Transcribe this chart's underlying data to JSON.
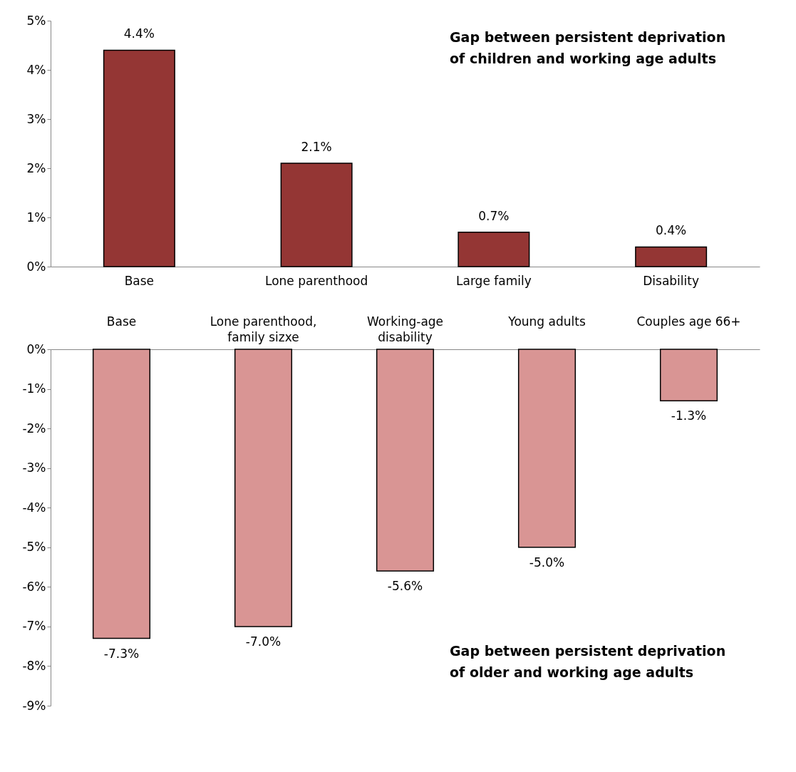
{
  "chart_data": [
    {
      "type": "bar",
      "categories": [
        "Base",
        "Lone parenthood",
        "Large family",
        "Disability"
      ],
      "values": [
        4.4,
        2.1,
        0.7,
        0.4
      ],
      "value_labels": [
        "4.4%",
        "2.1%",
        "0.7%",
        "0.4%"
      ],
      "color": "#943634",
      "ylim": [
        0,
        5
      ],
      "yticks": [
        {
          "value": 0,
          "label": "0%"
        },
        {
          "value": 1,
          "label": "1%"
        },
        {
          "value": 2,
          "label": "2%"
        },
        {
          "value": 3,
          "label": "3%"
        },
        {
          "value": 4,
          "label": "4%"
        },
        {
          "value": 5,
          "label": "5%"
        }
      ],
      "grid": false,
      "annotations": [
        "Gap between persistent deprivation of children and working age adults"
      ]
    },
    {
      "type": "bar",
      "categories": [
        "Base",
        "Lone parenthood, family sizxe",
        "Working-age disability",
        "Young adults",
        "Couples age 66+"
      ],
      "values": [
        -7.3,
        -7.0,
        -5.6,
        -5.0,
        -1.3
      ],
      "value_labels": [
        "-7.3%",
        "-7.0%",
        "-5.6%",
        "-5.0%",
        "-1.3%"
      ],
      "color": "#d99594",
      "ylim": [
        -9,
        0
      ],
      "yticks": [
        {
          "value": 0,
          "label": "0%"
        },
        {
          "value": -1,
          "label": "-1%"
        },
        {
          "value": -2,
          "label": "-2%"
        },
        {
          "value": -3,
          "label": "-3%"
        },
        {
          "value": -4,
          "label": "-4%"
        },
        {
          "value": -5,
          "label": "-5%"
        },
        {
          "value": -6,
          "label": "-6%"
        },
        {
          "value": -7,
          "label": "-7%"
        },
        {
          "value": -8,
          "label": "-8%"
        },
        {
          "value": -9,
          "label": "-9%"
        }
      ],
      "grid": false,
      "annotations": [
        "Gap between persistent deprivation of older and working age adults"
      ]
    }
  ]
}
